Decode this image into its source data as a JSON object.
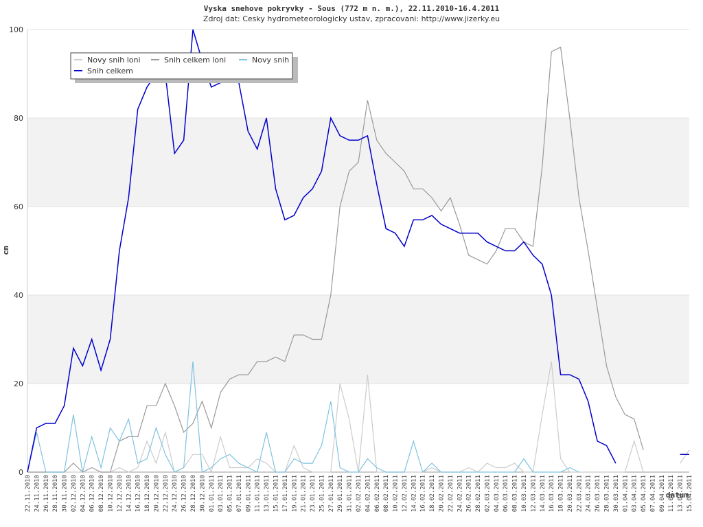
{
  "chart_data": {
    "type": "line",
    "title": "Vyska snehove pokryvky - Sous (772 m n. m.), 22.11.2010-16.4.2011",
    "subtitle": "Zdroj dat: Cesky hydrometeorologicky ustav, zpracovani: http://www.jizerky.eu",
    "y_label": "cm",
    "x_label": "datum",
    "categories": [
      "22.11.2010",
      "24.11.2010",
      "26.11.2010",
      "28.11.2010",
      "30.11.2010",
      "02.12.2010",
      "04.12.2010",
      "06.12.2010",
      "08.12.2010",
      "10.12.2010",
      "12.12.2010",
      "14.12.2010",
      "16.12.2010",
      "18.12.2010",
      "20.12.2010",
      "22.12.2010",
      "24.12.2010",
      "26.12.2010",
      "28.12.2010",
      "30.12.2010",
      "01.01.2011",
      "03.01.2011",
      "05.01.2011",
      "07.01.2011",
      "09.01.2011",
      "11.01.2011",
      "13.01.2011",
      "15.01.2011",
      "17.01.2011",
      "19.01.2011",
      "21.01.2011",
      "23.01.2011",
      "25.01.2011",
      "27.01.2011",
      "29.01.2011",
      "31.01.2011",
      "02.02.2011",
      "04.02.2011",
      "06.02.2011",
      "08.02.2011",
      "10.02.2011",
      "12.02.2011",
      "14.02.2011",
      "16.02.2011",
      "18.02.2011",
      "20.02.2011",
      "22.02.2011",
      "24.02.2011",
      "26.02.2011",
      "28.02.2011",
      "02.03.2011",
      "04.03.2011",
      "06.03.2011",
      "08.03.2011",
      "10.03.2011",
      "12.03.2011",
      "14.03.2011",
      "16.03.2011",
      "18.03.2011",
      "20.03.2011",
      "22.03.2011",
      "24.03.2011",
      "26.03.2011",
      "28.03.2011",
      "30.03.2011",
      "01.04.2011",
      "03.04.2011",
      "05.04.2011",
      "07.04.2011",
      "09.04.2011",
      "11.04.2011",
      "13.04.2011",
      "15.04.2011"
    ],
    "series": [
      {
        "name": "Novy snih loni",
        "color": "#cccccc",
        "values": [
          0,
          0,
          0,
          0,
          0,
          0,
          0,
          0,
          0,
          0,
          1,
          0,
          1,
          7,
          2,
          9,
          0,
          1,
          4,
          4,
          0,
          8,
          1,
          1,
          1,
          3,
          2,
          0,
          0,
          6,
          1,
          0,
          0,
          0,
          20,
          12,
          0,
          22,
          0,
          0,
          0,
          0,
          0,
          0,
          1,
          0,
          0,
          0,
          1,
          0,
          2,
          1,
          1,
          2,
          0,
          0,
          13,
          25,
          3,
          0,
          0,
          0,
          0,
          0,
          0,
          0,
          7,
          0,
          null,
          null,
          null,
          2,
          5
        ]
      },
      {
        "name": "Snih celkem loni",
        "color": "#999999",
        "values": [
          0,
          0,
          0,
          0,
          0,
          2,
          0,
          1,
          0,
          0,
          7,
          8,
          8,
          15,
          15,
          20,
          15,
          9,
          11,
          16,
          10,
          18,
          21,
          22,
          22,
          25,
          25,
          26,
          25,
          31,
          31,
          30,
          30,
          40,
          60,
          68,
          70,
          84,
          75,
          72,
          70,
          68,
          64,
          64,
          62,
          59,
          62,
          56,
          49,
          48,
          47,
          50,
          55,
          55,
          52,
          51,
          69,
          95,
          96,
          80,
          62,
          50,
          37,
          24,
          17,
          13,
          12,
          5,
          null,
          null,
          null,
          null,
          null
        ]
      },
      {
        "name": "Novy snih",
        "color": "#7ec3e0",
        "values": [
          0,
          9,
          0,
          0,
          0,
          13,
          0,
          8,
          1,
          10,
          7,
          12,
          2,
          3,
          10,
          4,
          0,
          1,
          25,
          0,
          1,
          3,
          4,
          2,
          1,
          0,
          9,
          0,
          0,
          3,
          2,
          2,
          6,
          16,
          1,
          0,
          0,
          3,
          1,
          0,
          0,
          0,
          7,
          0,
          2,
          0,
          0,
          0,
          0,
          0,
          0,
          0,
          0,
          0,
          3,
          0,
          0,
          0,
          0,
          1,
          0,
          null,
          null,
          null,
          null,
          null,
          null,
          null,
          null,
          null,
          null,
          null,
          null
        ]
      },
      {
        "name": "Snih celkem",
        "color": "#0000cc",
        "values": [
          0,
          10,
          11,
          11,
          15,
          28,
          24,
          30,
          23,
          30,
          50,
          62,
          82,
          87,
          90,
          90,
          72,
          75,
          100,
          93,
          87,
          88,
          89,
          88,
          77,
          73,
          80,
          64,
          57,
          58,
          62,
          64,
          68,
          80,
          76,
          75,
          75,
          76,
          65,
          55,
          54,
          51,
          57,
          57,
          58,
          56,
          55,
          54,
          54,
          54,
          52,
          51,
          50,
          50,
          52,
          49,
          47,
          40,
          22,
          22,
          21,
          16,
          7,
          6,
          2,
          null,
          null,
          null,
          null,
          null,
          null,
          4,
          4
        ]
      }
    ],
    "ylim": [
      0,
      100
    ],
    "yticks": [
      0,
      20,
      40,
      60,
      80,
      100
    ],
    "grid": true,
    "legend": "upper left"
  }
}
